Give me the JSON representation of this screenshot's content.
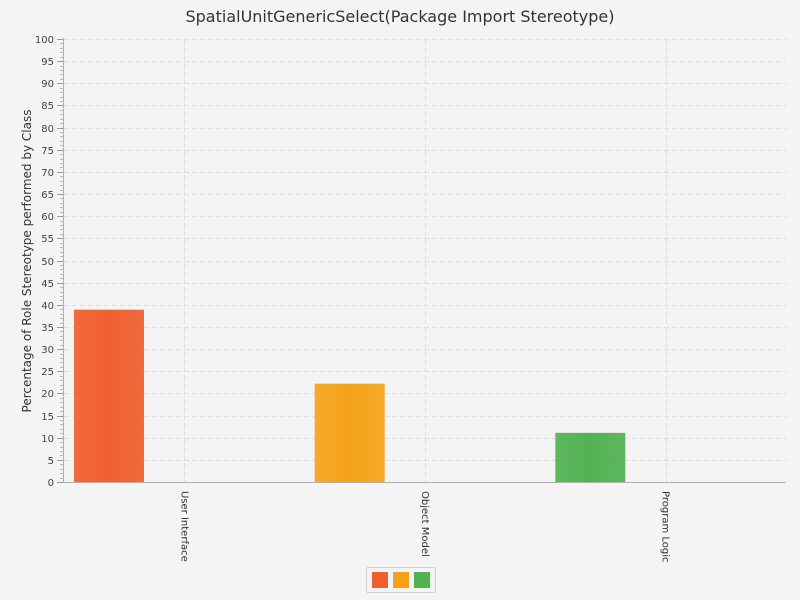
{
  "chart_data": {
    "type": "bar",
    "title": "SpatialUnitGenericSelect(Package Import Stereotype)",
    "xlabel": "",
    "ylabel": "Percentage of Role Stereotype performed by Class",
    "categories": [
      "User Interface",
      "Object Model",
      "Program Logic"
    ],
    "values": [
      38.9,
      22.2,
      11.1
    ],
    "colors": [
      "#f05f2e",
      "#f5a21a",
      "#52b252"
    ],
    "ylim": [
      0,
      100
    ],
    "yticks": [
      0,
      5,
      10,
      15,
      20,
      25,
      30,
      35,
      40,
      45,
      50,
      55,
      60,
      65,
      70,
      75,
      80,
      85,
      90,
      95,
      100
    ],
    "grid": true,
    "legend": {
      "placement": "bottom-center",
      "entries": [
        "#f05f2e",
        "#f5a21a",
        "#52b252"
      ]
    }
  }
}
